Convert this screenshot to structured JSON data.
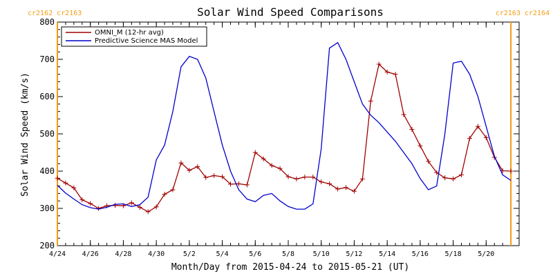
{
  "chart_data": {
    "type": "line",
    "title": "Solar Wind Speed Comparisons",
    "xlabel": "Month/Day from 2015-04-24 to 2015-05-21 (UT)",
    "ylabel": "Solar Wind Speed (km/s)",
    "xlim": [
      "2015-04-24T00:00",
      "2015-05-22T00:00"
    ],
    "ylim": [
      200,
      800
    ],
    "y_ticks": [
      200,
      300,
      400,
      500,
      600,
      700,
      800
    ],
    "x_tick_labels": [
      "4/24",
      "4/26",
      "4/28",
      "4/30",
      "5/2",
      "5/4",
      "5/6",
      "5/8",
      "5/10",
      "5/12",
      "5/14",
      "5/16",
      "5/18",
      "5/20"
    ],
    "x_tick_dates": [
      "2015-04-24T00:00",
      "2015-04-26T00:00",
      "2015-04-28T00:00",
      "2015-04-30T00:00",
      "2015-05-02T00:00",
      "2015-05-04T00:00",
      "2015-05-06T00:00",
      "2015-05-08T00:00",
      "2015-05-10T00:00",
      "2015-05-12T00:00",
      "2015-05-14T00:00",
      "2015-05-16T00:00",
      "2015-05-18T00:00",
      "2015-05-20T00:00"
    ],
    "grid": false,
    "legend_position": "top-left",
    "carrington_markers": [
      {
        "label": "cr2162 cr2163",
        "date": "2015-04-24T00:00",
        "side": "left",
        "color": "#f39c12"
      },
      {
        "label": "cr2163 cr2164",
        "date": "2015-05-21T12:00",
        "side": "right",
        "color": "#f39c12"
      }
    ],
    "series": [
      {
        "name": "OMNI_M (12-hr avg)",
        "color": "#a00000",
        "marker": "plus",
        "x": [
          "2015-04-24T00:00",
          "2015-04-24T12:00",
          "2015-04-25T00:00",
          "2015-04-25T12:00",
          "2015-04-26T00:00",
          "2015-04-26T12:00",
          "2015-04-27T00:00",
          "2015-04-27T12:00",
          "2015-04-28T00:00",
          "2015-04-28T12:00",
          "2015-04-29T00:00",
          "2015-04-29T12:00",
          "2015-04-30T00:00",
          "2015-04-30T12:00",
          "2015-05-01T00:00",
          "2015-05-01T12:00",
          "2015-05-02T00:00",
          "2015-05-02T12:00",
          "2015-05-03T00:00",
          "2015-05-03T12:00",
          "2015-05-04T00:00",
          "2015-05-04T12:00",
          "2015-05-05T00:00",
          "2015-05-05T12:00",
          "2015-05-06T00:00",
          "2015-05-06T12:00",
          "2015-05-07T00:00",
          "2015-05-07T12:00",
          "2015-05-08T00:00",
          "2015-05-08T12:00",
          "2015-05-09T00:00",
          "2015-05-09T12:00",
          "2015-05-10T00:00",
          "2015-05-10T12:00",
          "2015-05-11T00:00",
          "2015-05-11T12:00",
          "2015-05-12T00:00",
          "2015-05-12T12:00",
          "2015-05-13T00:00",
          "2015-05-13T12:00",
          "2015-05-14T00:00",
          "2015-05-14T12:00",
          "2015-05-15T00:00",
          "2015-05-15T12:00",
          "2015-05-16T00:00",
          "2015-05-16T12:00",
          "2015-05-17T00:00",
          "2015-05-17T12:00",
          "2015-05-18T00:00",
          "2015-05-18T12:00",
          "2015-05-19T00:00",
          "2015-05-19T12:00",
          "2015-05-20T00:00",
          "2015-05-20T12:00",
          "2015-05-21T00:00",
          "2015-05-21T12:00"
        ],
        "values": [
          381,
          368,
          355,
          323,
          313,
          300,
          307,
          308,
          307,
          315,
          303,
          291,
          304,
          338,
          350,
          422,
          402,
          412,
          383,
          388,
          385,
          365,
          366,
          363,
          450,
          433,
          415,
          407,
          385,
          379,
          384,
          384,
          371,
          366,
          352,
          356,
          346,
          379,
          588,
          687,
          666,
          660,
          552,
          512,
          468,
          426,
          396,
          382,
          379,
          390,
          488,
          520,
          490,
          437,
          401,
          400
        ]
      },
      {
        "name": "Predictive Science MAS Model",
        "color": "#0000cc",
        "marker": "none",
        "x": [
          "2015-04-24T00:00",
          "2015-04-24T12:00",
          "2015-04-25T00:00",
          "2015-04-25T12:00",
          "2015-04-26T00:00",
          "2015-04-26T12:00",
          "2015-04-27T00:00",
          "2015-04-27T12:00",
          "2015-04-28T00:00",
          "2015-04-28T12:00",
          "2015-04-29T00:00",
          "2015-04-29T12:00",
          "2015-04-30T00:00",
          "2015-04-30T12:00",
          "2015-05-01T00:00",
          "2015-05-01T12:00",
          "2015-05-02T00:00",
          "2015-05-02T12:00",
          "2015-05-03T00:00",
          "2015-05-03T12:00",
          "2015-05-04T00:00",
          "2015-05-04T12:00",
          "2015-05-05T00:00",
          "2015-05-05T12:00",
          "2015-05-06T00:00",
          "2015-05-06T12:00",
          "2015-05-07T00:00",
          "2015-05-07T12:00",
          "2015-05-08T00:00",
          "2015-05-08T12:00",
          "2015-05-09T00:00",
          "2015-05-09T12:00",
          "2015-05-10T00:00",
          "2015-05-10T12:00",
          "2015-05-11T00:00",
          "2015-05-11T12:00",
          "2015-05-12T00:00",
          "2015-05-12T12:00",
          "2015-05-13T00:00",
          "2015-05-13T12:00",
          "2015-05-14T00:00",
          "2015-05-14T12:00",
          "2015-05-15T00:00",
          "2015-05-15T12:00",
          "2015-05-16T00:00",
          "2015-05-16T12:00",
          "2015-05-17T00:00",
          "2015-05-17T12:00",
          "2015-05-18T00:00",
          "2015-05-18T12:00",
          "2015-05-19T00:00",
          "2015-05-19T12:00",
          "2015-05-20T00:00",
          "2015-05-20T12:00",
          "2015-05-21T00:00",
          "2015-05-21T12:00"
        ],
        "values": [
          362,
          341,
          325,
          310,
          302,
          298,
          303,
          311,
          312,
          305,
          310,
          330,
          430,
          470,
          560,
          680,
          708,
          700,
          650,
          560,
          470,
          400,
          350,
          325,
          318,
          335,
          340,
          320,
          305,
          298,
          298,
          312,
          460,
          730,
          745,
          700,
          640,
          580,
          550,
          530,
          505,
          480,
          450,
          420,
          380,
          350,
          360,
          500,
          690,
          695,
          660,
          600,
          520,
          440,
          390,
          375
        ]
      }
    ]
  }
}
